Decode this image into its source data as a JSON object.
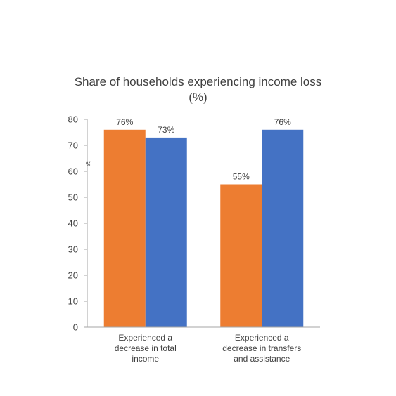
{
  "chart_data": {
    "type": "bar",
    "title": "Share of households experiencing income loss",
    "subtitle": "(%)",
    "ylabel": "%",
    "xlabel": "",
    "ylim": [
      0,
      80
    ],
    "yticks": [
      0,
      10,
      20,
      30,
      40,
      50,
      60,
      70,
      80
    ],
    "grid": false,
    "legend": "none",
    "categories": [
      [
        "Experienced a",
        "decrease in total",
        "income"
      ],
      [
        "Experienced a",
        "decrease in transfers",
        "and assistance"
      ]
    ],
    "series": [
      {
        "color": "#ED7D31",
        "values": [
          76,
          55
        ],
        "labels": [
          "76%",
          "55%"
        ]
      },
      {
        "color": "#4472C4",
        "values": [
          73,
          76
        ],
        "labels": [
          "73%",
          "76%"
        ]
      }
    ],
    "axis_color": "#A6A6A6",
    "text_color": "#404040"
  }
}
